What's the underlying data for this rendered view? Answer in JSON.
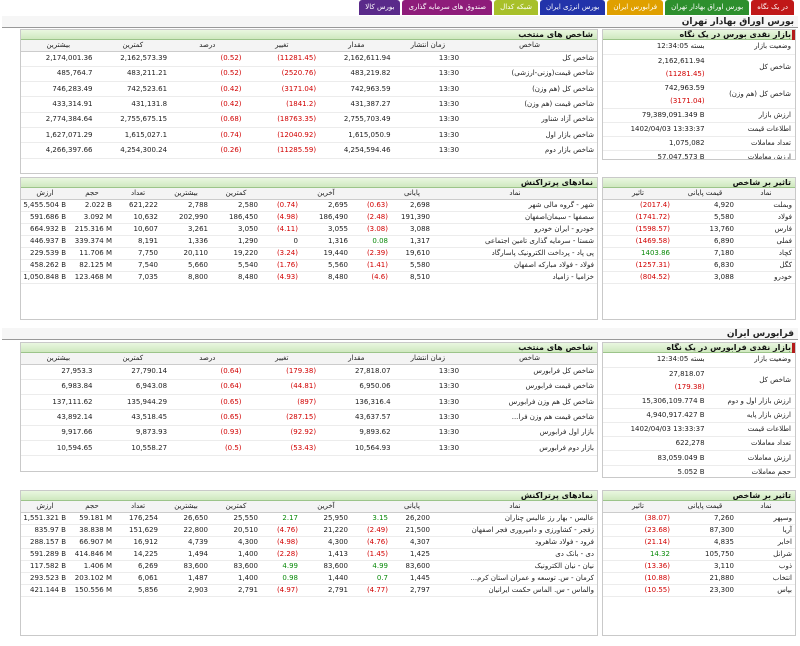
{
  "tabs": [
    {
      "label": "در یک نگاه",
      "color": "#c01818"
    },
    {
      "label": "بورس اوراق بهادار تهران",
      "color": "#2d8f2d"
    },
    {
      "label": "فرابورس ایران",
      "color": "#e0a000"
    },
    {
      "label": "بورس انرژی ایران",
      "color": "#2233aa"
    },
    {
      "label": "شبکه کدال",
      "color": "#a8c02a"
    },
    {
      "label": "صندوق های سرمایه گذاری",
      "color": "#8e1c7a"
    },
    {
      "label": "بورس کالا",
      "color": "#5a2a8a"
    }
  ],
  "bourse": {
    "section_title": "بورس اوراق بهادار تهران",
    "summary": {
      "title": "بازار نقدی بورس در یک نگاه",
      "rows": [
        {
          "label": "وضعیت بازار",
          "value": "بسته 12:34:05",
          "change": ""
        },
        {
          "label": "شاخص کل",
          "value": "2,162,611.94",
          "change": "(11281.45)"
        },
        {
          "label": "شاخص کل (هم وزن)",
          "value": "742,963.59",
          "change": "(3171.04)"
        },
        {
          "label": "ارزش بازار",
          "value": "79,389,091.349 B",
          "change": ""
        },
        {
          "label": "اطلاعات قیمت",
          "value": "1402/04/03 13:33:37",
          "change": ""
        },
        {
          "label": "تعداد معاملات",
          "value": "1,075,082",
          "change": ""
        },
        {
          "label": "ارزش معاملات",
          "value": "57,047.573 B",
          "change": ""
        }
      ]
    },
    "indices": {
      "title": "شاخص های منتخب",
      "headers": [
        "شاخص",
        "زمان انتشار",
        "مقدار",
        "تغییر",
        "درصد",
        "کمترین",
        "بیشترین"
      ],
      "rows": [
        [
          "شاخص کل",
          "13:30",
          "2,162,611.94",
          "(11281.45)",
          "(0.52)",
          "2,162,573.39",
          "2,174,001.36"
        ],
        [
          "شاخص قیمت(وزنی-ارزشی)",
          "13:30",
          "483,219.82",
          "(2520.76)",
          "(0.52)",
          "483,211.21",
          "485,764.7"
        ],
        [
          "شاخص کل (هم وزن)",
          "13:30",
          "742,963.59",
          "(3171.04)",
          "(0.42)",
          "742,523.61",
          "746,283.49"
        ],
        [
          "شاخص قیمت (هم وزن)",
          "13:30",
          "431,387.27",
          "(1841.2)",
          "(0.42)",
          "431,131.8",
          "433,314.91"
        ],
        [
          "شاخص آزاد شناور",
          "13:30",
          "2,755,703.49",
          "(18763.35)",
          "(0.68)",
          "2,755,675.15",
          "2,774,384.64"
        ],
        [
          "شاخص بازار اول",
          "13:30",
          "1,615,050.9",
          "(12040.92)",
          "(0.74)",
          "1,615,027.1",
          "1,627,071.29"
        ],
        [
          "شاخص بازار دوم",
          "13:30",
          "4,254,594.46",
          "(11285.59)",
          "(0.26)",
          "4,254,300.24",
          "4,266,397.66"
        ]
      ]
    },
    "impact": {
      "title": "تاثیر بر شاخص",
      "headers": [
        "نماد",
        "قیمت پایانی",
        "تاثیر"
      ],
      "rows": [
        [
          "وبملت",
          "4,920",
          "(2017.4)"
        ],
        [
          "فولاد",
          "5,580",
          "(1741.72)"
        ],
        [
          "فارس",
          "13,760",
          "(1598.57)"
        ],
        [
          "فملی",
          "6,890",
          "(1469.58)"
        ],
        [
          "کچاد",
          "7,180",
          "1403.86"
        ],
        [
          "کگل",
          "6,830",
          "(1257.31)"
        ],
        [
          "خودرو",
          "3,088",
          "(804.52)"
        ]
      ]
    },
    "active": {
      "title": "نمادهای پرتراکنش",
      "headers": [
        "نماد",
        "پایانی",
        "",
        "آخرین",
        "",
        "کمترین",
        "بیشترین",
        "تعداد",
        "حجم",
        "ارزش"
      ],
      "rows": [
        [
          "شهر - گروه مالی شهر",
          "2,698",
          "(0.63)",
          "2,695",
          "(0.74)",
          "2,580",
          "2,788",
          "621,222",
          "2.022 B",
          "5,455.504 B"
        ],
        [
          "سصفها - سیمان‌اصفهان",
          "191,390",
          "(2.48)",
          "186,490",
          "(4.98)",
          "186,450",
          "202,990",
          "10,632",
          "3.092 M",
          "591.686 B"
        ],
        [
          "خودرو - ایران‌ خودرو",
          "3,088",
          "(3.08)",
          "3,055",
          "(4.11)",
          "3,050",
          "3,261",
          "10,607",
          "215.316 M",
          "664.932 B"
        ],
        [
          "شستا - سرمایه گذاری تامین اجتماعی",
          "1,317",
          "0.08",
          "1,316",
          "0",
          "1,290",
          "1,336",
          "8,191",
          "339.374 M",
          "446.937 B"
        ],
        [
          "پی پاد - پرداخت الکترونیک پاسارگاد",
          "19,610",
          "(2.39)",
          "19,440",
          "(3.24)",
          "19,220",
          "20,110",
          "7,750",
          "11.706 M",
          "229.539 B"
        ],
        [
          "فولاد - فولاد مبارکه اصفهان",
          "5,580",
          "(1.41)",
          "5,560",
          "(1.76)",
          "5,540",
          "5,660",
          "7,540",
          "82.125 M",
          "458.262 B"
        ],
        [
          "خزامیا - زامیاد",
          "8,510",
          "(4.6)",
          "8,480",
          "(4.93)",
          "8,480",
          "8,800",
          "7,035",
          "123.468 M",
          "1,050.848 B"
        ]
      ]
    }
  },
  "farabourse": {
    "section_title": "فرابورس ایران",
    "summary": {
      "title": "بازار نقدی فرابورس در یک نگاه",
      "rows": [
        {
          "label": "وضعیت بازار",
          "value": "بسته 12:34:05",
          "change": ""
        },
        {
          "label": "شاخص کل",
          "value": "27,818.07",
          "change": "(179.38)"
        },
        {
          "label": "ارزش بازار اول و دوم",
          "value": "15,306,109.774 B",
          "change": ""
        },
        {
          "label": "ارزش بازار پایه",
          "value": "4,940,917.427 B",
          "change": ""
        },
        {
          "label": "اطلاعات قیمت",
          "value": "1402/04/03 13:33:37",
          "change": ""
        },
        {
          "label": "تعداد معاملات",
          "value": "622,278",
          "change": ""
        },
        {
          "label": "ارزش معاملات",
          "value": "83,059.049 B",
          "change": ""
        },
        {
          "label": "حجم معاملات",
          "value": "5.052 B",
          "change": ""
        }
      ]
    },
    "indices": {
      "title": "شاخص های منتخب",
      "headers": [
        "شاخص",
        "زمان انتشار",
        "مقدار",
        "تغییر",
        "درصد",
        "کمترین",
        "بیشترین"
      ],
      "rows": [
        [
          "شاخص کل فرابورس",
          "13:30",
          "27,818.07",
          "(179.38)",
          "(0.64)",
          "27,790.14",
          "27,953.3"
        ],
        [
          "شاخص قیمت فرابورس",
          "13:30",
          "6,950.06",
          "(44.81)",
          "(0.64)",
          "6,943.08",
          "6,983.84"
        ],
        [
          "شاخص کل هم وزن فرابورس",
          "13:30",
          "136,316.4",
          "(897)",
          "(0.65)",
          "135,944.29",
          "137,111.62"
        ],
        [
          "شاخص قیمت هم وزن فرا...",
          "13:30",
          "43,637.57",
          "(287.15)",
          "(0.65)",
          "43,518.45",
          "43,892.14"
        ],
        [
          "بازار اول فرابورس",
          "13:30",
          "9,893.62",
          "(92.92)",
          "(0.93)",
          "9,873.93",
          "9,917.66"
        ],
        [
          "بازار دوم فرابورس",
          "13:30",
          "10,564.93",
          "(53.43)",
          "(0.5)",
          "10,558.27",
          "10,594.65"
        ]
      ]
    },
    "impact": {
      "title": "تاثیر بر شاخص",
      "headers": [
        "نماد",
        "قیمت پایانی",
        "تاثیر"
      ],
      "rows": [
        [
          "وسپهر",
          "7,260",
          "(38.07)"
        ],
        [
          "آریا",
          "87,300",
          "(23.68)"
        ],
        [
          "اخابر",
          "4,835",
          "(21.14)"
        ],
        [
          "شرانل",
          "105,750",
          "14.32"
        ],
        [
          "ذوب",
          "3,110",
          "(13.36)"
        ],
        [
          "انتخاب",
          "21,880",
          "(10.88)"
        ],
        [
          "بپاس",
          "23,300",
          "(10.55)"
        ]
      ]
    },
    "active": {
      "title": "نمادهای پرتراکنش",
      "headers": [
        "نماد",
        "پایانی",
        "",
        "آخرین",
        "",
        "کمترین",
        "بیشترین",
        "تعداد",
        "حجم",
        "ارزش"
      ],
      "rows": [
        [
          "عالیس - بهار رز عالیس چناران",
          "26,200",
          "3.15",
          "25,950",
          "2.17",
          "25,550",
          "26,650",
          "176,254",
          "59.181 M",
          "1,551.321 B"
        ],
        [
          "زفجر - کشاورزی و دامپروری فجر اصفهان",
          "21,500",
          "(2.49)",
          "21,220",
          "(4.76)",
          "20,510",
          "22,800",
          "151,629",
          "38.838 M",
          "835.97 B"
        ],
        [
          "فرود - فولاد شاهرود",
          "4,307",
          "(4.76)",
          "4,300",
          "(4.98)",
          "4,300",
          "4,739",
          "16,912",
          "66.907 M",
          "288.157 B"
        ],
        [
          "دی - بانک دی",
          "1,425",
          "(1.45)",
          "1,413",
          "(2.28)",
          "1,400",
          "1,494",
          "14,225",
          "414.846 M",
          "591.289 B"
        ],
        [
          "نیان - نیان الکترونیک",
          "83,600",
          "4.99",
          "83,600",
          "4.99",
          "83,600",
          "83,600",
          "6,269",
          "1.406 M",
          "117.582 B"
        ],
        [
          "کرمان - س. توسعه و عمران استان کرم...",
          "1,445",
          "0.7",
          "1,440",
          "0.98",
          "1,400",
          "1,487",
          "6,061",
          "203.102 M",
          "293.523 B"
        ],
        [
          "والماس - س. الماس حکمت ایرانیان",
          "2,797",
          "(4.77)",
          "2,791",
          "(4.97)",
          "2,791",
          "2,903",
          "5,856",
          "150.556 M",
          "421.144 B"
        ]
      ]
    }
  }
}
